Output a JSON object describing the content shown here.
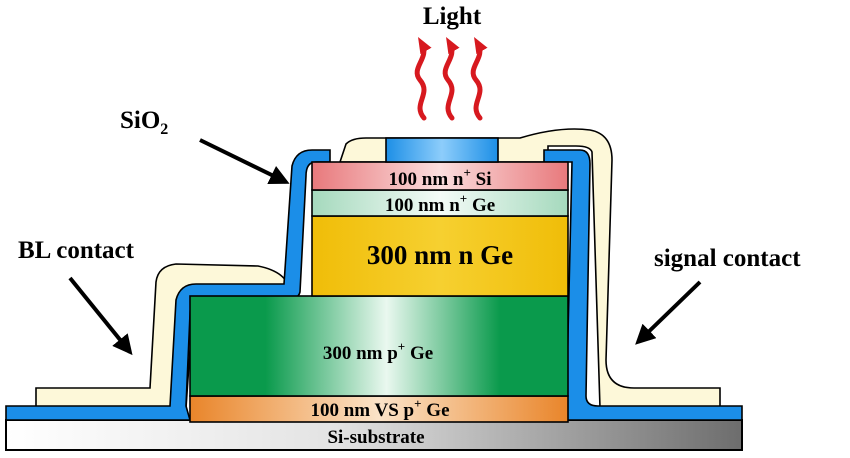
{
  "labels": {
    "light": "Light",
    "sio2_main": "SiO",
    "sio2_sub": "2",
    "bl_contact": "BL contact",
    "signal_contact": "signal contact"
  },
  "layers": {
    "n_si": {
      "prefix": "100 nm n",
      "sup": "+",
      "suffix": " Si"
    },
    "n_ge_thin": {
      "prefix": "100 nm n",
      "sup": "+",
      "suffix": " Ge"
    },
    "n_ge": {
      "text": "300 nm n Ge"
    },
    "p_ge": {
      "prefix": "300 nm p",
      "sup": "+",
      "suffix": " Ge"
    },
    "vs_p_ge": {
      "prefix": "100 nm VS p",
      "sup": "+",
      "suffix": " Ge"
    },
    "substrate": {
      "text": "Si-substrate"
    }
  },
  "colors": {
    "contact": "#fdf8d9",
    "oxide": "#1b8ee8",
    "n_si": "#e88a8c",
    "n_ge_thin": "#b8e2cc",
    "n_ge": "#f2c10d",
    "p_ge": "#0c9a4e",
    "vs_p_ge": "#ec8a2c",
    "substrate": "#c8c8c8",
    "light": "#d7191f",
    "window": "#2196f3"
  }
}
